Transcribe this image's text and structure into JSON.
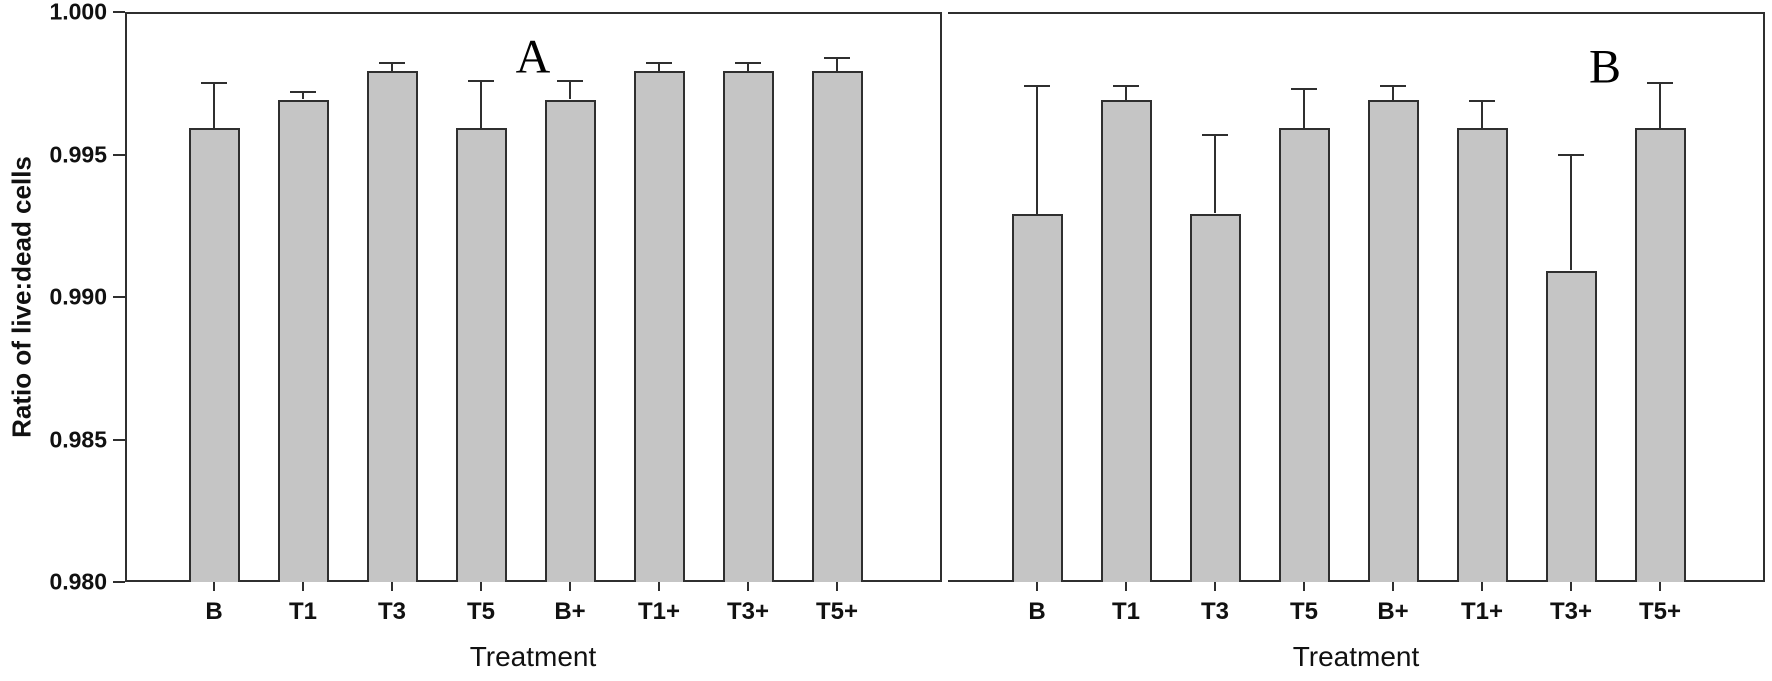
{
  "figure": {
    "background": "#ffffff",
    "bar_fill": "#c5c5c5",
    "line_color": "#2f2f2f",
    "text_color": "#111111"
  },
  "chart_data": [
    {
      "type": "bar",
      "panel_letter": "A",
      "ylabel": "Ratio of live:dead cells",
      "xlabel": "Treatment",
      "ylim": [
        0.98,
        1.0
      ],
      "ytick_values": [
        1.0,
        0.995,
        0.99,
        0.985,
        0.98
      ],
      "ytick_labels": [
        "1.000",
        "0.995",
        "0.990",
        "0.985",
        "0.980"
      ],
      "grid": false,
      "legend": "none",
      "categories": [
        "B",
        "T1",
        "T3",
        "T5",
        "B+",
        "T1+",
        "T3+",
        "T5+"
      ],
      "values": [
        0.996,
        0.997,
        0.998,
        0.996,
        0.997,
        0.998,
        0.998,
        0.998
      ],
      "error_top": [
        0.9976,
        0.9973,
        0.9983,
        0.9977,
        0.9977,
        0.9983,
        0.9983,
        0.9985
      ]
    },
    {
      "type": "bar",
      "panel_letter": "B",
      "ylabel": "Ratio of live:dead cells",
      "xlabel": "Treatment",
      "ylim": [
        0.98,
        1.0
      ],
      "ytick_values": [
        1.0,
        0.995,
        0.99,
        0.985,
        0.98
      ],
      "ytick_labels": [
        "1.000",
        "0.995",
        "0.990",
        "0.985",
        "0.980"
      ],
      "grid": false,
      "legend": "none",
      "categories": [
        "B",
        "T1",
        "T3",
        "T5",
        "B+",
        "T1+",
        "T3+",
        "T5+"
      ],
      "values": [
        0.993,
        0.997,
        0.993,
        0.996,
        0.997,
        0.996,
        0.991,
        0.996
      ],
      "error_top": [
        0.9975,
        0.9975,
        0.9958,
        0.9974,
        0.9975,
        0.997,
        0.9951,
        0.9976
      ]
    }
  ]
}
